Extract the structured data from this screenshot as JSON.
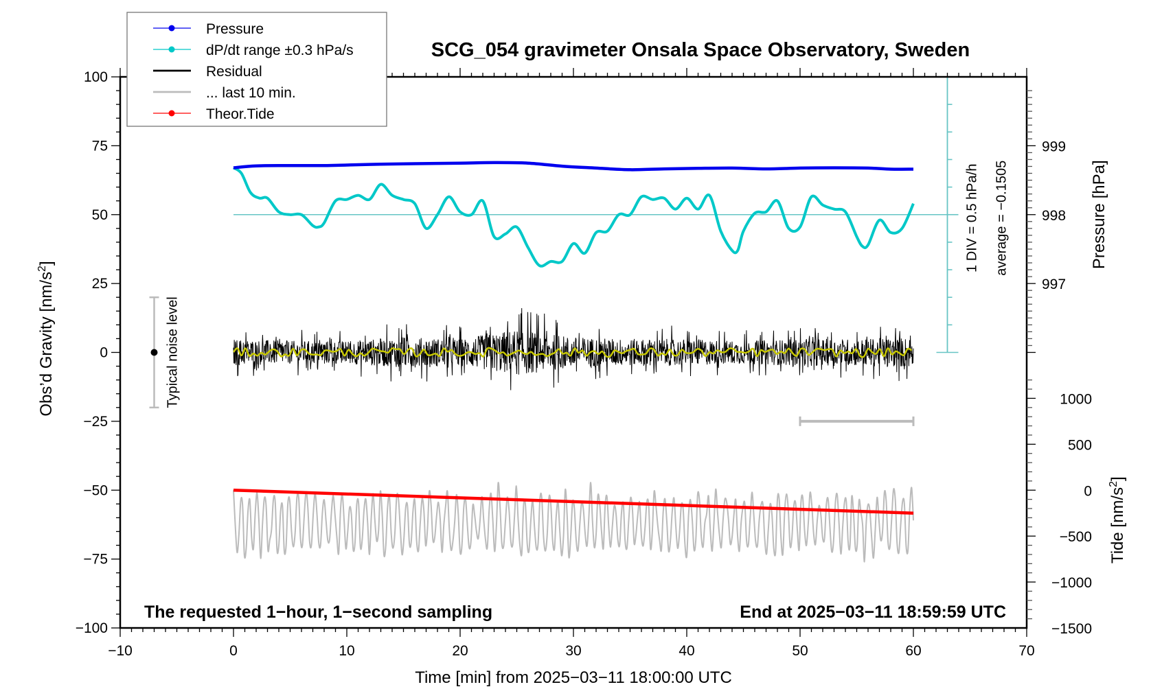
{
  "chart_data": {
    "type": "line",
    "title": "SCG_054 gravimeter Onsala Space Observatory, Sweden",
    "xlabel": "Time [min] from 2025−03−11 18:00:00 UTC",
    "ylabel_left": "Obs'd Gravity [nm/s²]",
    "ylabel_right_top": "Pressure [hPa]",
    "ylabel_right_bottom": "Tide [nm/s²]",
    "xlim": [
      -10,
      70
    ],
    "ylim_left": [
      -100,
      100
    ],
    "ylim_pressure": [
      997,
      999
    ],
    "ylim_tide": [
      -1500,
      1000
    ],
    "x_ticks": [
      "−10",
      "0",
      "10",
      "20",
      "30",
      "40",
      "50",
      "60",
      "70"
    ],
    "x_tick_values": [
      -10,
      0,
      10,
      20,
      30,
      40,
      50,
      60,
      70
    ],
    "y_left_ticks": [
      "100",
      "75",
      "50",
      "25",
      "0",
      "−25",
      "−50",
      "−75",
      "−100"
    ],
    "y_left_tick_values": [
      100,
      75,
      50,
      25,
      0,
      -25,
      -50,
      -75,
      -100
    ],
    "pressure_ticks": [
      "999",
      "998",
      "997"
    ],
    "pressure_tick_values": [
      999,
      998,
      997
    ],
    "tide_ticks": [
      "1000",
      "500",
      "0",
      "−500",
      "−1000",
      "−1500"
    ],
    "tide_tick_values": [
      1000,
      500,
      0,
      -500,
      -1000,
      -1500
    ],
    "grid": false,
    "legend": {
      "placement": "top-left",
      "entries": [
        {
          "label": "Pressure",
          "color": "#0000ee",
          "marker": true
        },
        {
          "label": "dP/dt range ±0.3 hPa/s",
          "color": "#00c8c8",
          "marker": true
        },
        {
          "label": "Residual",
          "color": "#000000",
          "marker": false
        },
        {
          "label": "... last 10 min.",
          "color": "#bbbbbb",
          "marker": false
        },
        {
          "label": "Theor.Tide",
          "color": "#ff0000",
          "marker": true
        }
      ]
    },
    "series": [
      {
        "name": "Pressure",
        "color": "#0000ee",
        "unit": "gravity-axis",
        "x": [
          0,
          2,
          5,
          8,
          10,
          13,
          16,
          20,
          23,
          26,
          29,
          32,
          35,
          38,
          41,
          44,
          47,
          50,
          53,
          56,
          58,
          60
        ],
        "values": [
          67,
          67.7,
          67.8,
          67.8,
          68,
          68.3,
          68.5,
          68.7,
          68.9,
          68.7,
          67.6,
          66.9,
          66.3,
          66.6,
          66.8,
          66.9,
          66.6,
          66.9,
          67.0,
          66.9,
          66.5,
          66.5
        ]
      },
      {
        "name": "dP/dt",
        "color": "#00c8c8",
        "unit": "gravity-axis",
        "baseline": 50,
        "x": [
          0,
          0.7,
          1.5,
          2.3,
          3,
          4,
          5,
          6,
          7,
          7.5,
          8,
          9,
          10,
          11,
          12,
          13,
          14,
          15,
          16,
          17,
          18,
          19,
          20,
          21,
          22,
          23,
          24,
          25,
          26,
          27,
          28,
          29,
          30,
          31,
          32,
          33,
          34,
          35,
          36,
          37,
          38,
          39,
          40,
          41,
          42,
          43,
          44,
          44.5,
          45,
          46,
          47,
          48,
          49,
          50,
          51,
          52,
          53,
          54,
          55,
          55.5,
          56,
          57,
          58,
          59,
          60
        ],
        "values": [
          67,
          65,
          58,
          56,
          56,
          51,
          50,
          50,
          46,
          45.5,
          47,
          55,
          55.5,
          57,
          55.5,
          61,
          57,
          55.5,
          54,
          45,
          50,
          56.5,
          51,
          50,
          55,
          42,
          43,
          45.5,
          38,
          31.5,
          33,
          33,
          39.5,
          36,
          43.5,
          44,
          50,
          50,
          56.5,
          55.5,
          56,
          52,
          56,
          52,
          57,
          44,
          37,
          37,
          44,
          50.5,
          51,
          55,
          45,
          45.5,
          56.5,
          53.5,
          52,
          51,
          42,
          38.5,
          39,
          48,
          43.5,
          45,
          54
        ]
      },
      {
        "name": "Residual",
        "color": "#000000",
        "unit": "gravity-axis",
        "description": "1-second residual noise centred on 0, amplitude roughly ±7 nm/s² with peaks to +17 and −15 near minute 25",
        "x": [
          0,
          5,
          10,
          15,
          20,
          25,
          30,
          35,
          40,
          45,
          50,
          55,
          60
        ],
        "envelope": [
          7,
          6,
          6,
          8,
          7,
          12,
          8,
          7,
          7,
          6,
          7,
          7,
          8
        ]
      },
      {
        "name": "Residual smoothed",
        "color": "#c8c800",
        "unit": "gravity-axis",
        "description": "smoothed residual near 0"
      },
      {
        "name": "... last 10 min.",
        "color": "#bbbbbb",
        "unit": "gravity-axis",
        "description": "oscillating grey trace between about −77 and −45 nm/s²"
      },
      {
        "name": "Theor.Tide",
        "color": "#ff0000",
        "unit": "tide-axis",
        "x": [
          0,
          60
        ],
        "values": [
          0,
          -250
        ]
      }
    ],
    "annotations": {
      "noise_label": "Typical noise level",
      "noise_bar_range": [
        -20,
        20
      ],
      "noise_bar_center": 0,
      "noise_bar_x": -7,
      "div_label": "1 DIV = 0.5 hPa/h",
      "average_label": "average = −0.1505",
      "bottom_left": "The requested 1−hour, 1−second sampling",
      "bottom_right": "End at 2025−03−11 18:59:59 UTC",
      "last10_bar_range": [
        50,
        60
      ]
    }
  }
}
